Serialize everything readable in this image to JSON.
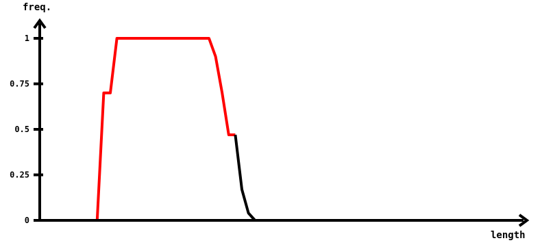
{
  "chart_data": {
    "type": "line",
    "title": "",
    "xlabel": "length",
    "ylabel": "freq.",
    "ylim": [
      0,
      1
    ],
    "y_ticks": [
      {
        "value": 0,
        "label": "0"
      },
      {
        "value": 0.25,
        "label": "0.25"
      },
      {
        "value": 0.5,
        "label": "0.5"
      },
      {
        "value": 0.75,
        "label": "0.75"
      },
      {
        "value": 1,
        "label": "1"
      }
    ],
    "x_range": [
      0,
      70
    ],
    "grid": false,
    "legend": "none",
    "colors": {
      "red_segment": "#ff0000",
      "black_segment": "#000000",
      "baseline_highlight": "#bdbdbd",
      "axis": "#000000"
    },
    "series": [
      {
        "color": "red",
        "points": [
          [
            8,
            0
          ],
          [
            9,
            0.7
          ],
          [
            10,
            0.7
          ],
          [
            11,
            1
          ],
          [
            25,
            1
          ],
          [
            26,
            0.9
          ],
          [
            27,
            0.7
          ],
          [
            28,
            0.47
          ],
          [
            29,
            0.47
          ]
        ]
      },
      {
        "color": "black",
        "points": [
          [
            29,
            0.47
          ],
          [
            30,
            0.17
          ],
          [
            31,
            0.04
          ],
          [
            32,
            0
          ],
          [
            43,
            0
          ]
        ]
      },
      {
        "color": "red",
        "points": [
          [
            43,
            0
          ],
          [
            64,
            0
          ]
        ]
      },
      {
        "color": "black",
        "points": [
          [
            0,
            0
          ],
          [
            8,
            0
          ]
        ]
      },
      {
        "color": "black",
        "points": [
          [
            64,
            0
          ],
          [
            66,
            0
          ]
        ]
      }
    ],
    "baseline_highlight_range": [
      8,
      32
    ]
  }
}
